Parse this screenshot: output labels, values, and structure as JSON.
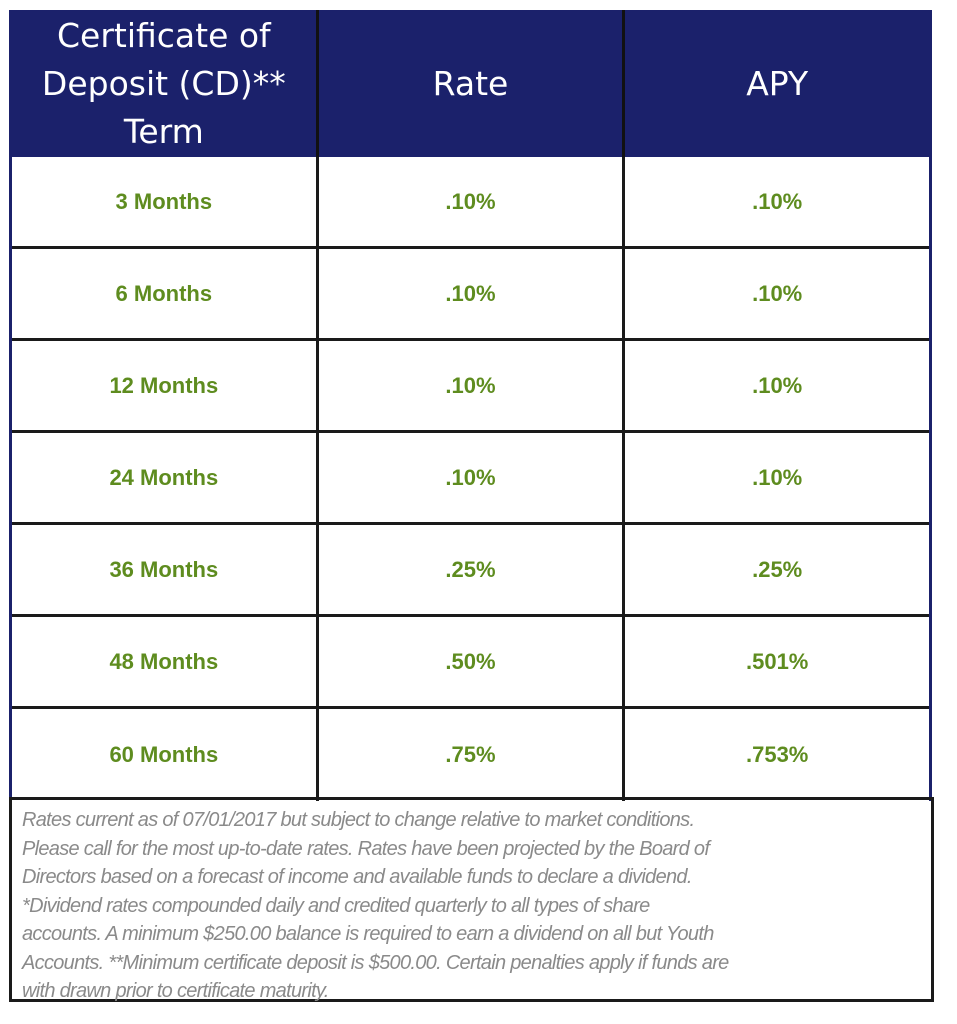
{
  "table": {
    "headers": [
      "Certificate of\nDeposit (CD)**\nTerm",
      "Rate",
      "APY"
    ],
    "rows": [
      [
        "3 Months",
        ".10%",
        ".10%"
      ],
      [
        "6 Months",
        ".10%",
        ".10%"
      ],
      [
        "12 Months",
        ".10%",
        ".10%"
      ],
      [
        "24 Months",
        ".10%",
        ".10%"
      ],
      [
        "36 Months",
        ".25%",
        ".25%"
      ],
      [
        "48 Months",
        ".50%",
        ".501%"
      ],
      [
        "60 Months",
        ".75%",
        ".753%"
      ]
    ]
  },
  "footnote_lines": [
    "Rates current as of 07/01/2017 but subject to change relative to market conditions.",
    "Please call for the most up-to-date rates. Rates have been projected by the Board of",
    "Directors based on a forecast of income and available funds to declare a dividend.",
    "*Dividend rates compounded daily and credited quarterly to all types of share",
    "accounts. A minimum $250.00 balance is required to earn a dividend on all but Youth",
    "Accounts. **Minimum certificate deposit is $500.00. Certain penalties apply if funds are",
    "with drawn prior to certificate maturity."
  ],
  "colors": {
    "header_bg": "#1b216b",
    "value_text": "#5e8c1f",
    "note_text": "#8a8a8a"
  }
}
